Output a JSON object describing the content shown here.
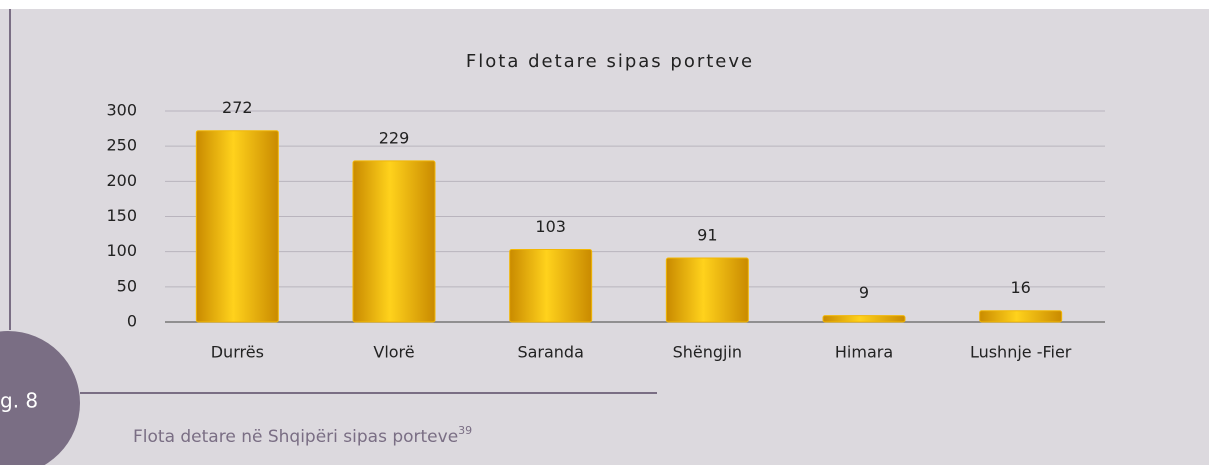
{
  "chart_data": {
    "type": "bar",
    "title": "Flota detare sipas porteve",
    "categories": [
      "Durrës",
      "Vlorë",
      "Saranda",
      "Shëngjin",
      "Himara",
      "Lushnje -Fier"
    ],
    "values": [
      272,
      229,
      103,
      91,
      9,
      16
    ],
    "color": "#f2b705",
    "ylim": [
      0,
      300
    ],
    "yticks": [
      0,
      50,
      100,
      150,
      200,
      250,
      300
    ],
    "grid": true
  },
  "figure": {
    "label": "g. 8",
    "caption": "Flota detare në Shqipëri sipas porteve",
    "footnote": "39"
  }
}
